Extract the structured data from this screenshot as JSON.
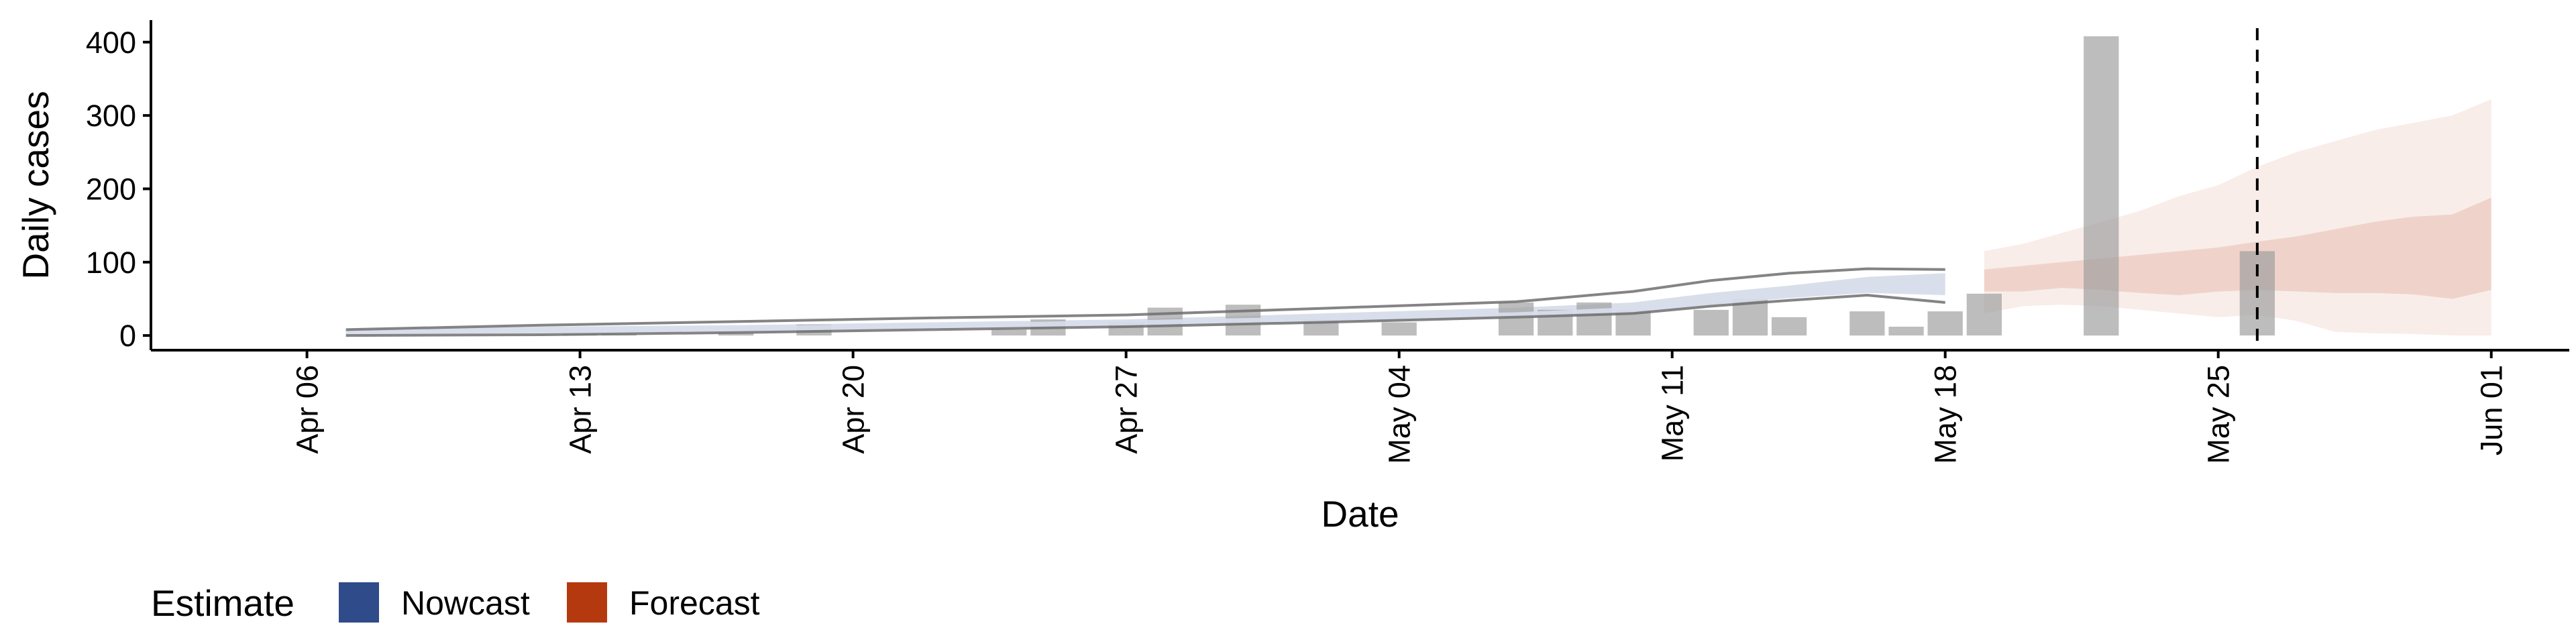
{
  "chart_data": {
    "type": "bar",
    "xlabel": "Date",
    "ylabel": "Daily cases",
    "ylim": [
      -20,
      430
    ],
    "yticks": [
      0,
      100,
      200,
      300,
      400
    ],
    "xlim": [
      "2026-04-02",
      "2026-06-03"
    ],
    "x_ticks": [
      {
        "date": "2026-04-06",
        "label": "Apr 06"
      },
      {
        "date": "2026-04-13",
        "label": "Apr 13"
      },
      {
        "date": "2026-04-20",
        "label": "Apr 20"
      },
      {
        "date": "2026-04-27",
        "label": "Apr 27"
      },
      {
        "date": "2026-05-04",
        "label": "May 04"
      },
      {
        "date": "2026-05-11",
        "label": "May 11"
      },
      {
        "date": "2026-05-18",
        "label": "May 18"
      },
      {
        "date": "2026-05-25",
        "label": "May 25"
      },
      {
        "date": "2026-06-01",
        "label": "Jun 01"
      }
    ],
    "reference_line": {
      "date": "2026-05-26",
      "style": "dashed"
    },
    "observed_cases": {
      "dates": [
        "2026-04-13",
        "2026-04-14",
        "2026-04-17",
        "2026-04-19",
        "2026-04-24",
        "2026-04-25",
        "2026-04-27",
        "2026-04-28",
        "2026-04-30",
        "2026-05-02",
        "2026-05-04",
        "2026-05-07",
        "2026-05-08",
        "2026-05-09",
        "2026-05-10",
        "2026-05-12",
        "2026-05-13",
        "2026-05-14",
        "2026-05-16",
        "2026-05-17",
        "2026-05-18",
        "2026-05-19",
        "2026-05-22",
        "2026-05-26"
      ],
      "values": [
        2,
        2,
        4,
        15,
        8,
        22,
        18,
        38,
        42,
        22,
        18,
        45,
        35,
        45,
        35,
        35,
        50,
        25,
        33,
        12,
        33,
        57,
        408,
        115
      ]
    },
    "legend": {
      "title": "Estimate",
      "position": "bottom-left",
      "items": [
        {
          "label": "Nowcast",
          "color": "#2F4B8A"
        },
        {
          "label": "Forecast",
          "color": "#B5390F"
        }
      ]
    },
    "nowcast": {
      "color": "#2F4B8A",
      "dates": [
        "2026-04-07",
        "2026-04-12",
        "2026-04-17",
        "2026-04-22",
        "2026-04-27",
        "2026-05-02",
        "2026-05-07",
        "2026-05-10",
        "2026-05-12",
        "2026-05-14",
        "2026-05-16",
        "2026-05-18"
      ],
      "median": [
        4,
        7,
        9,
        13,
        17,
        22,
        28,
        35,
        45,
        55,
        64,
        68
      ],
      "lower_90": [
        2,
        3,
        6,
        11,
        15,
        20,
        25,
        33,
        42,
        51,
        58,
        55
      ],
      "upper_90": [
        8,
        12,
        14,
        18,
        22,
        30,
        38,
        45,
        58,
        68,
        80,
        85
      ],
      "lower_outer": [
        0,
        1,
        4,
        8,
        12,
        18,
        25,
        30,
        40,
        48,
        55,
        45
      ],
      "upper_outer": [
        8,
        14,
        19,
        24,
        28,
        37,
        46,
        60,
        75,
        85,
        91,
        90
      ]
    },
    "forecast": {
      "color": "#B5390F",
      "dates": [
        "2026-05-19",
        "2026-05-20",
        "2026-05-21",
        "2026-05-22",
        "2026-05-23",
        "2026-05-24",
        "2026-05-25",
        "2026-05-26",
        "2026-05-27",
        "2026-05-28",
        "2026-05-29",
        "2026-05-30",
        "2026-05-31",
        "2026-06-01"
      ],
      "lower_90": [
        60,
        60,
        65,
        62,
        58,
        55,
        60,
        62,
        60,
        58,
        58,
        56,
        50,
        62
      ],
      "upper_90": [
        90,
        95,
        100,
        105,
        110,
        115,
        120,
        128,
        135,
        145,
        155,
        162,
        165,
        188
      ],
      "lower_outer": [
        30,
        40,
        42,
        40,
        35,
        30,
        25,
        28,
        20,
        5,
        3,
        2,
        0,
        0
      ],
      "upper_outer": [
        115,
        125,
        140,
        155,
        170,
        190,
        205,
        230,
        250,
        265,
        280,
        290,
        300,
        322
      ]
    }
  }
}
